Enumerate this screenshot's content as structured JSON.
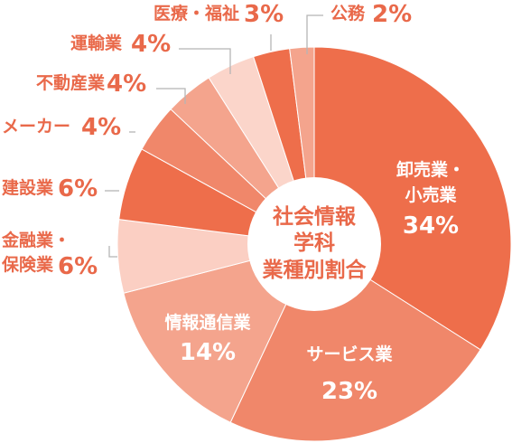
{
  "chart_data": {
    "type": "pie",
    "title_lines": [
      "社会情報",
      "学科",
      "業種別割合"
    ],
    "slices": [
      {
        "name": "卸売業・小売業",
        "name_lines": [
          "卸売業・",
          "小売業"
        ],
        "value": 34,
        "pct_label": "34%",
        "color": "#EE6E4B",
        "label_pos": "inside"
      },
      {
        "name": "サービス業",
        "name_lines": [
          "サービス業"
        ],
        "value": 23,
        "pct_label": "23%",
        "color": "#F0876A",
        "label_pos": "inside"
      },
      {
        "name": "情報通信業",
        "name_lines": [
          "情報通信業"
        ],
        "value": 14,
        "pct_label": "14%",
        "color": "#F4A48D",
        "label_pos": "inside"
      },
      {
        "name": "金融業・保険業",
        "name_lines": [
          "金融業・",
          "保険業"
        ],
        "value": 6,
        "pct_label": "6%",
        "color": "#FBCFC3",
        "label_pos": "outside"
      },
      {
        "name": "建設業",
        "name_lines": [
          "建設業"
        ],
        "value": 6,
        "pct_label": "6%",
        "color": "#EE6E4B",
        "label_pos": "outside"
      },
      {
        "name": "メーカー",
        "name_lines": [
          "メーカー"
        ],
        "value": 4,
        "pct_label": "4%",
        "color": "#F0876A",
        "label_pos": "outside"
      },
      {
        "name": "不動産業",
        "name_lines": [
          "不動産業"
        ],
        "value": 4,
        "pct_label": "4%",
        "color": "#F4A48D",
        "label_pos": "outside"
      },
      {
        "name": "運輸業",
        "name_lines": [
          "運輸業"
        ],
        "value": 4,
        "pct_label": "4%",
        "color": "#FBD5CA",
        "label_pos": "outside"
      },
      {
        "name": "医療・福祉",
        "name_lines": [
          "医療・福祉"
        ],
        "value": 3,
        "pct_label": "3%",
        "color": "#EE6E4B",
        "label_pos": "outside"
      },
      {
        "name": "公務",
        "name_lines": [
          "公務"
        ],
        "value": 2,
        "pct_label": "2%",
        "color": "#F4A48D",
        "label_pos": "outside"
      }
    ]
  },
  "colors": {
    "label_text": "#E9694A",
    "leader_line": "#B5B5B5",
    "background": "#FFFFFF"
  }
}
